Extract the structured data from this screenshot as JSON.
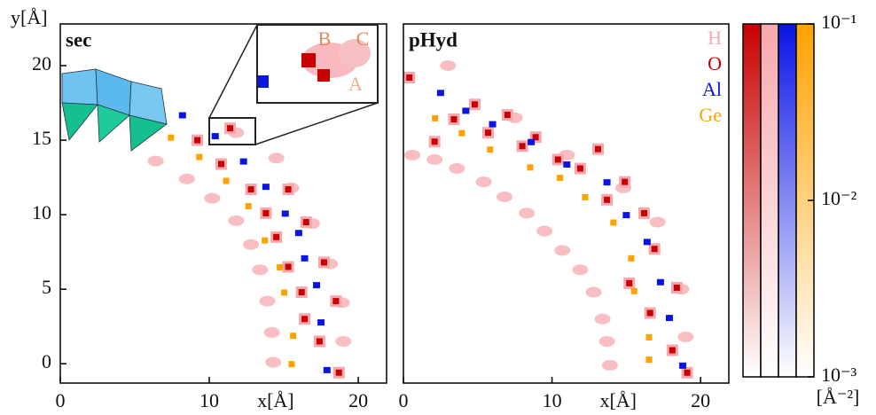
{
  "chart_data": [
    {
      "type": "scatter",
      "title": "sec",
      "xlabel": "x[Å]",
      "ylabel": "y[Å]",
      "xlim": [
        0,
        21.9
      ],
      "ylim": [
        -1.3,
        22.8
      ],
      "xticks": [
        0,
        10,
        20
      ],
      "yticks": [
        0,
        5,
        10,
        15,
        20
      ],
      "annotations": [
        "A",
        "B",
        "C"
      ],
      "series": [
        {
          "color": "#f7a8ae",
          "x": [
            6.4,
            8.5,
            10.2,
            11.8,
            12.8,
            13.4,
            13.9,
            14.2,
            14.3,
            11.8,
            14.5,
            15.5,
            16.9,
            18.1,
            18.9,
            19.0
          ],
          "y": [
            13.6,
            12.4,
            11.1,
            9.6,
            8.0,
            6.3,
            4.2,
            2.1,
            0.1,
            15.5,
            13.8,
            11.8,
            9.4,
            6.7,
            4.1,
            1.5
          ]
        },
        {
          "color": "#c80000",
          "x": [
            9.2,
            10.8,
            11.4,
            12.8,
            13.8,
            14.5,
            15.3,
            16.5,
            17.7,
            18.5,
            16.4,
            17.4,
            18.7,
            15.3,
            16.2
          ],
          "y": [
            15.0,
            13.4,
            15.8,
            11.7,
            10.1,
            8.5,
            11.7,
            9.5,
            6.8,
            4.2,
            3.0,
            1.5,
            -0.6,
            6.5,
            4.8
          ]
        },
        {
          "color": "#0a14e6",
          "x": [
            8.2,
            10.4,
            12.3,
            13.8,
            15.1,
            16.0,
            16.4,
            17.2,
            17.5,
            17.9
          ],
          "y": [
            16.7,
            15.3,
            13.6,
            11.9,
            10.1,
            8.8,
            7.1,
            5.3,
            2.8,
            -0.4
          ]
        },
        {
          "color": "#ffa200",
          "x": [
            7.4,
            9.3,
            11.1,
            12.6,
            13.7,
            14.7,
            15.0,
            15.6,
            15.5
          ],
          "y": [
            15.2,
            13.9,
            12.3,
            10.6,
            8.3,
            6.5,
            4.8,
            1.9,
            0.0
          ]
        }
      ]
    },
    {
      "type": "scatter",
      "title": "pHyd",
      "xlabel": "x[Å]",
      "xlim": [
        0,
        21.9
      ],
      "ylim": [
        -1.3,
        22.8
      ],
      "xticks": [
        0,
        10,
        20
      ],
      "series": [
        {
          "name": "H",
          "color": "#f7a8ae",
          "x": [
            0.6,
            2.1,
            3.6,
            5.4,
            6.8,
            8.3,
            9.5,
            10.7,
            11.9,
            12.8,
            13.4,
            13.7,
            13.9,
            3.0,
            7.5,
            11.0,
            14.8,
            17.1,
            18.7,
            19.0
          ],
          "y": [
            14.0,
            13.7,
            13.1,
            12.2,
            11.2,
            10.1,
            8.9,
            7.6,
            6.3,
            4.8,
            3.0,
            1.5,
            -0.1,
            20.0,
            16.5,
            14.0,
            11.8,
            9.5,
            5.0,
            1.8
          ]
        },
        {
          "name": "O",
          "color": "#c80000",
          "x": [
            0.4,
            2.1,
            3.4,
            4.8,
            5.7,
            7.0,
            8.0,
            8.9,
            10.4,
            11.9,
            13.1,
            13.7,
            14.9,
            16.2,
            16.9,
            18.4,
            16.6,
            18.1,
            19.1,
            15.2
          ],
          "y": [
            19.2,
            14.9,
            16.4,
            17.4,
            15.5,
            16.7,
            14.6,
            15.2,
            13.7,
            13.1,
            14.4,
            11.0,
            12.2,
            10.1,
            7.7,
            5.1,
            3.4,
            0.9,
            -0.6,
            5.4
          ]
        },
        {
          "name": "Al",
          "color": "#0a14e6",
          "x": [
            2.5,
            4.2,
            6.0,
            8.6,
            11.0,
            13.7,
            15.0,
            16.4,
            17.3,
            17.9,
            18.8
          ],
          "y": [
            18.2,
            17.0,
            16.1,
            14.9,
            13.4,
            12.2,
            10.0,
            8.2,
            5.5,
            3.1,
            -0.1
          ]
        },
        {
          "name": "Ge",
          "color": "#ffa200",
          "x": [
            2.1,
            3.9,
            5.8,
            8.5,
            10.5,
            12.2,
            14.1,
            15.3,
            15.5,
            16.5,
            16.5
          ],
          "y": [
            16.5,
            15.5,
            14.4,
            13.2,
            12.5,
            11.2,
            9.5,
            7.1,
            4.9,
            1.8,
            0.3
          ]
        }
      ]
    },
    {
      "type": "colorbar",
      "log": true,
      "zlim": [
        0.001,
        0.1
      ],
      "label": "[Å⁻²]",
      "colors": [
        "#c80000",
        "#f7a8ae",
        "#0a14e6",
        "#ffa200"
      ],
      "zticks": [
        {
          "value": 0.1,
          "label": "10⁻¹"
        },
        {
          "value": 0.01,
          "label": "10⁻²"
        },
        {
          "value": 0.001,
          "label": "10⁻³"
        }
      ]
    }
  ]
}
